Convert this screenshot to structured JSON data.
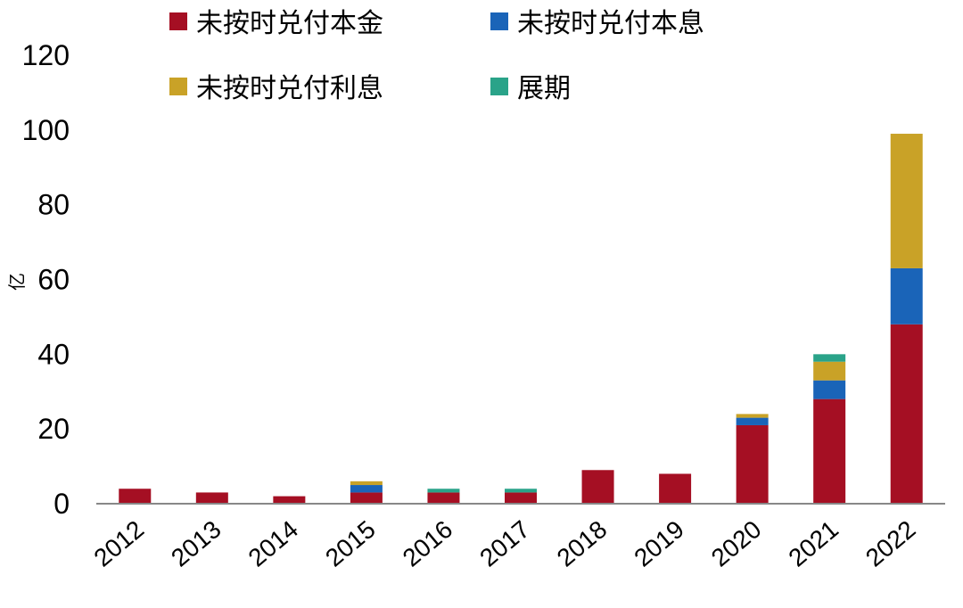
{
  "chart_data": {
    "type": "bar",
    "stacked": true,
    "title": "",
    "xlabel": "",
    "ylabel": "亿",
    "ylim": [
      0,
      120
    ],
    "yticks": [
      0,
      20,
      40,
      60,
      80,
      100,
      120
    ],
    "grid": false,
    "legend_position": "top",
    "categories": [
      "2012",
      "2013",
      "2014",
      "2015",
      "2016",
      "2017",
      "2018",
      "2019",
      "2020",
      "2021",
      "2022"
    ],
    "series": [
      {
        "name": "未按时兑付本金",
        "color": "#A50F23",
        "values": [
          4,
          3,
          2,
          3,
          3,
          3,
          9,
          8,
          21,
          28,
          48
        ]
      },
      {
        "name": "未按时兑付本息",
        "color": "#1A64B8",
        "values": [
          0,
          0,
          0,
          2,
          0,
          0,
          0,
          0,
          2,
          5,
          15
        ]
      },
      {
        "name": "未按时兑付利息",
        "color": "#C9A227",
        "values": [
          0,
          0,
          0,
          1,
          0,
          0,
          0,
          0,
          1,
          5,
          36
        ]
      },
      {
        "name": "展期",
        "color": "#2AA389",
        "values": [
          0,
          0,
          0,
          0,
          1,
          1,
          0,
          0,
          0,
          2,
          0
        ]
      }
    ]
  }
}
